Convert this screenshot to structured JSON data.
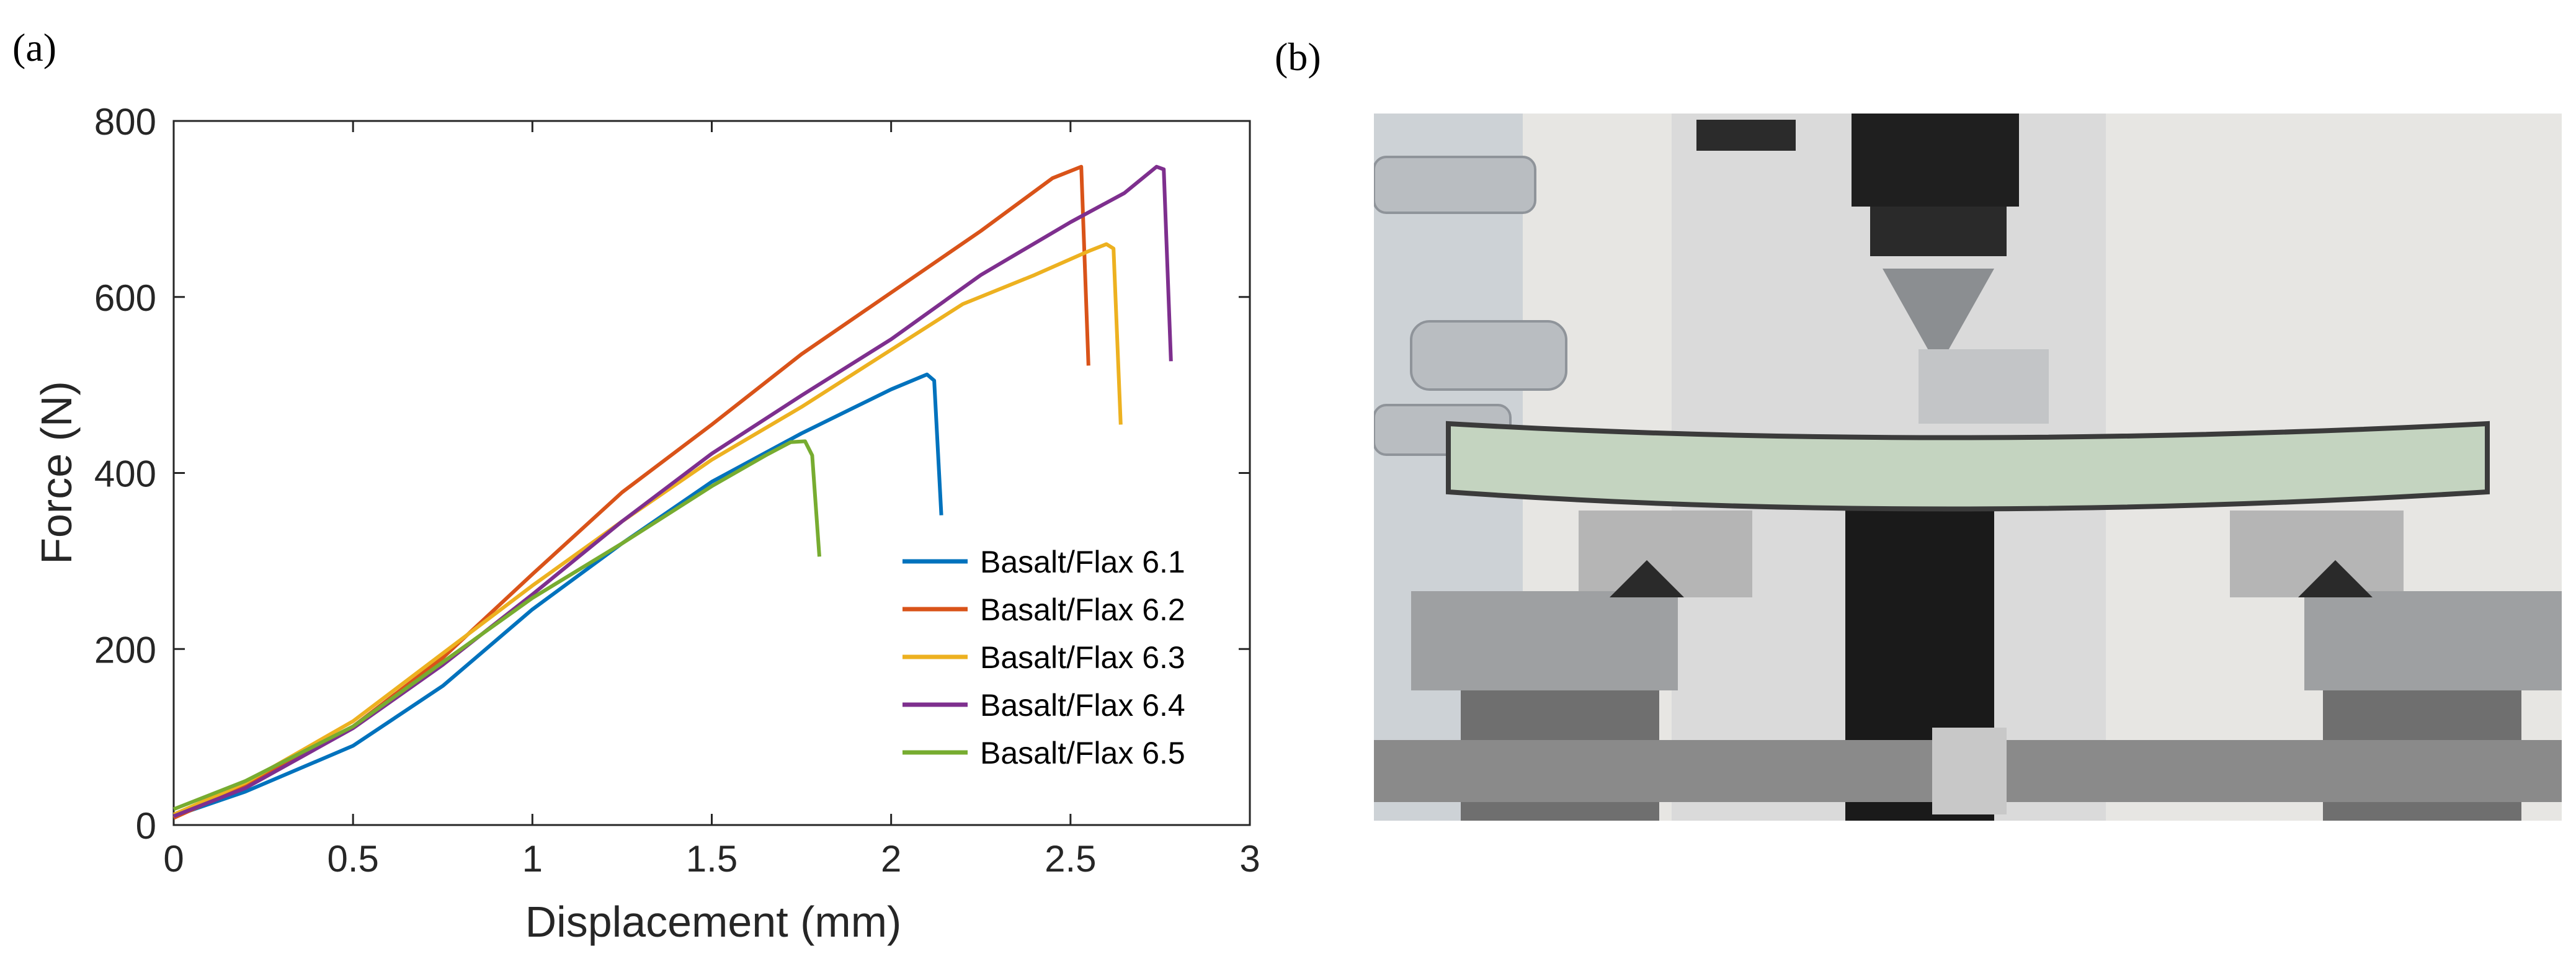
{
  "panels": {
    "a_label": "(a)",
    "b_label": "(b)"
  },
  "chart_data": {
    "type": "line",
    "title": "",
    "xlabel": "Displacement (mm)",
    "ylabel": "Force (N)",
    "xlim": [
      0,
      3
    ],
    "ylim": [
      0,
      800
    ],
    "xticks": [
      0,
      0.5,
      1,
      1.5,
      2,
      2.5,
      3
    ],
    "xtick_labels": [
      "0",
      "0.5",
      "1",
      "1.5",
      "2",
      "2.5",
      "3"
    ],
    "yticks": [
      0,
      200,
      400,
      600,
      800
    ],
    "ytick_labels": [
      "0",
      "200",
      "400",
      "600",
      "800"
    ],
    "grid": false,
    "legend_position": "bottom-right",
    "series": [
      {
        "name": "Basalt/Flax 6.1",
        "color": "#0072BD",
        "x": [
          0,
          0.2,
          0.5,
          0.75,
          1.0,
          1.25,
          1.5,
          1.75,
          1.9,
          2.0,
          2.1,
          2.12,
          2.14
        ],
        "y": [
          10,
          38,
          90,
          158,
          245,
          320,
          390,
          445,
          475,
          495,
          512,
          505,
          352
        ]
      },
      {
        "name": "Basalt/Flax 6.2",
        "color": "#D95319",
        "x": [
          0,
          0.2,
          0.5,
          0.75,
          1.0,
          1.25,
          1.5,
          1.75,
          2.0,
          2.25,
          2.45,
          2.53,
          2.55
        ],
        "y": [
          8,
          45,
          112,
          190,
          285,
          378,
          455,
          535,
          605,
          675,
          735,
          748,
          522
        ]
      },
      {
        "name": "Basalt/Flax 6.3",
        "color": "#EDB120",
        "x": [
          0,
          0.2,
          0.5,
          0.75,
          1.0,
          1.25,
          1.5,
          1.75,
          2.0,
          2.2,
          2.4,
          2.55,
          2.6,
          2.62,
          2.64
        ],
        "y": [
          12,
          48,
          118,
          195,
          272,
          345,
          415,
          475,
          540,
          592,
          625,
          652,
          660,
          655,
          455
        ]
      },
      {
        "name": "Basalt/Flax 6.4",
        "color": "#7E2F8E",
        "x": [
          0,
          0.2,
          0.5,
          0.75,
          1.0,
          1.25,
          1.5,
          1.75,
          2.0,
          2.25,
          2.5,
          2.65,
          2.74,
          2.76,
          2.78
        ],
        "y": [
          10,
          42,
          110,
          182,
          262,
          345,
          422,
          488,
          552,
          625,
          685,
          718,
          748,
          745,
          527
        ]
      },
      {
        "name": "Basalt/Flax 6.5",
        "color": "#77AC30",
        "x": [
          0,
          0.2,
          0.5,
          0.75,
          1.0,
          1.25,
          1.5,
          1.65,
          1.72,
          1.76,
          1.78,
          1.8
        ],
        "y": [
          18,
          50,
          112,
          185,
          258,
          320,
          385,
          420,
          435,
          436,
          420,
          305
        ]
      }
    ]
  },
  "photo": {
    "description_icon": "three-point-bending-test-photo-icon"
  }
}
